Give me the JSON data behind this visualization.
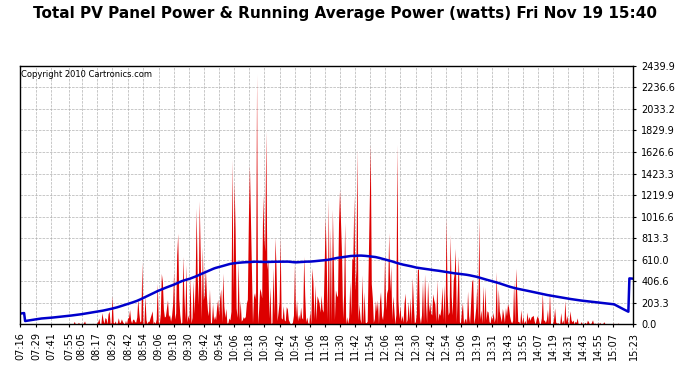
{
  "title": "Total PV Panel Power & Running Average Power (watts) Fri Nov 19 15:40",
  "copyright": "Copyright 2010 Cartronics.com",
  "y_max": 2439.9,
  "y_ticks": [
    0.0,
    203.3,
    406.6,
    610.0,
    813.3,
    1016.6,
    1219.9,
    1423.3,
    1626.6,
    1829.9,
    2033.2,
    2236.6,
    2439.9
  ],
  "x_labels": [
    "07:16",
    "07:29",
    "07:41",
    "07:55",
    "08:05",
    "08:17",
    "08:29",
    "08:42",
    "08:54",
    "09:06",
    "09:18",
    "09:30",
    "09:42",
    "09:54",
    "10:06",
    "10:18",
    "10:30",
    "10:42",
    "10:54",
    "11:06",
    "11:18",
    "11:30",
    "11:42",
    "11:54",
    "12:06",
    "12:18",
    "12:30",
    "12:42",
    "12:54",
    "13:06",
    "13:19",
    "13:31",
    "13:43",
    "13:55",
    "14:07",
    "14:19",
    "14:31",
    "14:43",
    "14:55",
    "15:07",
    "15:23"
  ],
  "background_color": "#ffffff",
  "plot_bg_color": "#ffffff",
  "grid_color": "#aaaaaa",
  "bar_color": "#dd0000",
  "line_color": "#0000cc",
  "title_fontsize": 11,
  "tick_fontsize": 7,
  "fig_width": 6.9,
  "fig_height": 3.75,
  "dpi": 100
}
